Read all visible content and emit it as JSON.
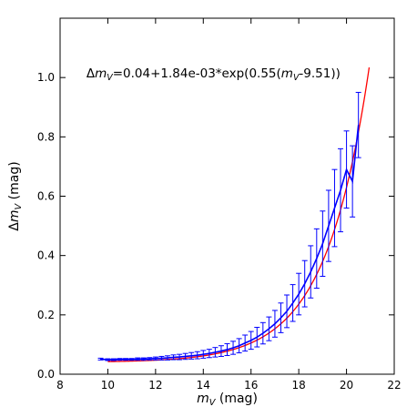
{
  "chart_data": {
    "type": "line",
    "xlabel": "m_V (mag)",
    "ylabel": "Δm_V (mag)",
    "xlim": [
      8,
      22
    ],
    "ylim": [
      0.0,
      1.2
    ],
    "xticks": [
      8,
      10,
      12,
      14,
      16,
      18,
      20,
      22
    ],
    "yticks": [
      0.0,
      0.2,
      0.4,
      0.6,
      0.8,
      1.0
    ],
    "xtick_labels": [
      "8",
      "10",
      "12",
      "14",
      "16",
      "18",
      "20",
      "22"
    ],
    "ytick_labels": [
      "0.0",
      "0.2",
      "0.4",
      "0.6",
      "0.8",
      "1.0"
    ],
    "grid": false,
    "annotation": {
      "text": "Δm_V=0.04+1.84e-03*exp(0.55(m_V-9.51))",
      "x": 9.1,
      "y": 1.0
    },
    "series": [
      {
        "type": "errorbar",
        "color": "#0000ff",
        "x": [
          9.7,
          10.0,
          10.25,
          10.5,
          10.75,
          11.0,
          11.25,
          11.5,
          11.75,
          12.0,
          12.25,
          12.5,
          12.75,
          13.0,
          13.25,
          13.5,
          13.75,
          14.0,
          14.25,
          14.5,
          14.75,
          15.0,
          15.25,
          15.5,
          15.75,
          16.0,
          16.25,
          16.5,
          16.75,
          17.0,
          17.25,
          17.5,
          17.75,
          18.0,
          18.25,
          18.5,
          18.75,
          19.0,
          19.25,
          19.5,
          19.75,
          20.0,
          20.25,
          20.5
        ],
        "y": [
          0.051,
          0.049,
          0.049,
          0.05,
          0.05,
          0.05,
          0.051,
          0.051,
          0.052,
          0.053,
          0.054,
          0.055,
          0.057,
          0.058,
          0.06,
          0.062,
          0.064,
          0.067,
          0.07,
          0.074,
          0.078,
          0.083,
          0.089,
          0.096,
          0.105,
          0.114,
          0.125,
          0.138,
          0.153,
          0.17,
          0.19,
          0.212,
          0.24,
          0.27,
          0.305,
          0.345,
          0.39,
          0.44,
          0.5,
          0.56,
          0.62,
          0.69,
          0.65,
          0.84
        ],
        "yerr": [
          0.003,
          0.003,
          0.003,
          0.003,
          0.003,
          0.003,
          0.004,
          0.004,
          0.004,
          0.005,
          0.006,
          0.007,
          0.008,
          0.009,
          0.01,
          0.011,
          0.012,
          0.013,
          0.014,
          0.016,
          0.018,
          0.02,
          0.022,
          0.024,
          0.027,
          0.03,
          0.033,
          0.036,
          0.04,
          0.045,
          0.05,
          0.055,
          0.062,
          0.07,
          0.078,
          0.088,
          0.1,
          0.11,
          0.12,
          0.13,
          0.14,
          0.13,
          0.12,
          0.11
        ]
      },
      {
        "type": "fit",
        "color": "#ff0000",
        "xmin": 10.0,
        "xmax": 20.95,
        "a": 0.04,
        "b": 0.00184,
        "c": 0.55,
        "x0": 9.51
      }
    ]
  }
}
